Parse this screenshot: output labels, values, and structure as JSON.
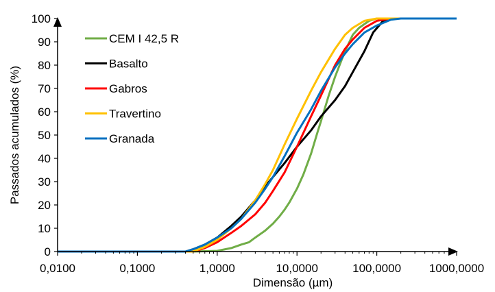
{
  "chart_data": {
    "type": "line",
    "title": "",
    "xlabel": "Dimensão (µm)",
    "ylabel": "Passados acumulados (%)",
    "x_scale": "log",
    "xlim": [
      0.01,
      1000
    ],
    "ylim": [
      0,
      100
    ],
    "x_ticks": [
      0.01,
      0.1,
      1,
      10,
      100,
      1000
    ],
    "x_tick_labels": [
      "0,0100",
      "0,1000",
      "1,0000",
      "10,0000",
      "100,0000",
      "1000,0000"
    ],
    "y_ticks": [
      0,
      10,
      20,
      30,
      40,
      50,
      60,
      70,
      80,
      90,
      100
    ],
    "y_tick_labels": [
      "0",
      "10",
      "20",
      "30",
      "40",
      "50",
      "60",
      "70",
      "80",
      "90",
      "100"
    ],
    "grid": false,
    "legend_position": "top-left",
    "series": [
      {
        "name": "CEM I 42,5 R",
        "color": "#70ad47",
        "points": [
          [
            0.01,
            0
          ],
          [
            0.5,
            0
          ],
          [
            1,
            0.3
          ],
          [
            1.5,
            1.5
          ],
          [
            2,
            3
          ],
          [
            2.5,
            4
          ],
          [
            3,
            6
          ],
          [
            4,
            9
          ],
          [
            5,
            12
          ],
          [
            6,
            15
          ],
          [
            7,
            18
          ],
          [
            8,
            21
          ],
          [
            10,
            27
          ],
          [
            12,
            33
          ],
          [
            15,
            42
          ],
          [
            18,
            51
          ],
          [
            20,
            56
          ],
          [
            25,
            67
          ],
          [
            30,
            75
          ],
          [
            40,
            86
          ],
          [
            50,
            93
          ],
          [
            60,
            96
          ],
          [
            80,
            99
          ],
          [
            100,
            100
          ],
          [
            1000,
            100
          ]
        ]
      },
      {
        "name": "Basalto",
        "color": "#000000",
        "points": [
          [
            0.01,
            0
          ],
          [
            0.4,
            0
          ],
          [
            0.5,
            1
          ],
          [
            0.7,
            3
          ],
          [
            1,
            6
          ],
          [
            1.5,
            11
          ],
          [
            2,
            15
          ],
          [
            3,
            22
          ],
          [
            4,
            28
          ],
          [
            5,
            32
          ],
          [
            7,
            38
          ],
          [
            10,
            45
          ],
          [
            15,
            52
          ],
          [
            20,
            58
          ],
          [
            30,
            65
          ],
          [
            40,
            71
          ],
          [
            50,
            77
          ],
          [
            70,
            86
          ],
          [
            90,
            94
          ],
          [
            120,
            99
          ],
          [
            160,
            100
          ],
          [
            1000,
            100
          ]
        ]
      },
      {
        "name": "Gabros",
        "color": "#ff0000",
        "points": [
          [
            0.01,
            0
          ],
          [
            0.5,
            0
          ],
          [
            0.7,
            1.5
          ],
          [
            1,
            4
          ],
          [
            1.5,
            8
          ],
          [
            2,
            11
          ],
          [
            3,
            16
          ],
          [
            4,
            21
          ],
          [
            5,
            26
          ],
          [
            7,
            34
          ],
          [
            10,
            45
          ],
          [
            15,
            58
          ],
          [
            20,
            67
          ],
          [
            30,
            80
          ],
          [
            40,
            87
          ],
          [
            50,
            91
          ],
          [
            70,
            96
          ],
          [
            100,
            99
          ],
          [
            150,
            100
          ],
          [
            1000,
            100
          ]
        ]
      },
      {
        "name": "Travertino",
        "color": "#ffc000",
        "points": [
          [
            0.01,
            0
          ],
          [
            0.5,
            0
          ],
          [
            0.7,
            2
          ],
          [
            1,
            5
          ],
          [
            1.5,
            10
          ],
          [
            2,
            14
          ],
          [
            3,
            22
          ],
          [
            4,
            29
          ],
          [
            5,
            35
          ],
          [
            7,
            46
          ],
          [
            10,
            57
          ],
          [
            15,
            69
          ],
          [
            20,
            77
          ],
          [
            30,
            87
          ],
          [
            40,
            93
          ],
          [
            50,
            96
          ],
          [
            70,
            99
          ],
          [
            100,
            100
          ],
          [
            1000,
            100
          ]
        ]
      },
      {
        "name": "Granada",
        "color": "#0070c0",
        "points": [
          [
            0.01,
            0
          ],
          [
            0.4,
            0
          ],
          [
            0.5,
            1
          ],
          [
            0.7,
            3
          ],
          [
            1,
            6
          ],
          [
            1.5,
            10
          ],
          [
            2,
            14
          ],
          [
            3,
            21
          ],
          [
            4,
            27
          ],
          [
            5,
            32
          ],
          [
            7,
            41
          ],
          [
            10,
            51
          ],
          [
            15,
            61
          ],
          [
            20,
            69
          ],
          [
            30,
            79
          ],
          [
            40,
            85
          ],
          [
            50,
            89
          ],
          [
            70,
            94
          ],
          [
            100,
            97
          ],
          [
            150,
            99.5
          ],
          [
            200,
            100
          ],
          [
            1000,
            100
          ]
        ]
      }
    ]
  }
}
